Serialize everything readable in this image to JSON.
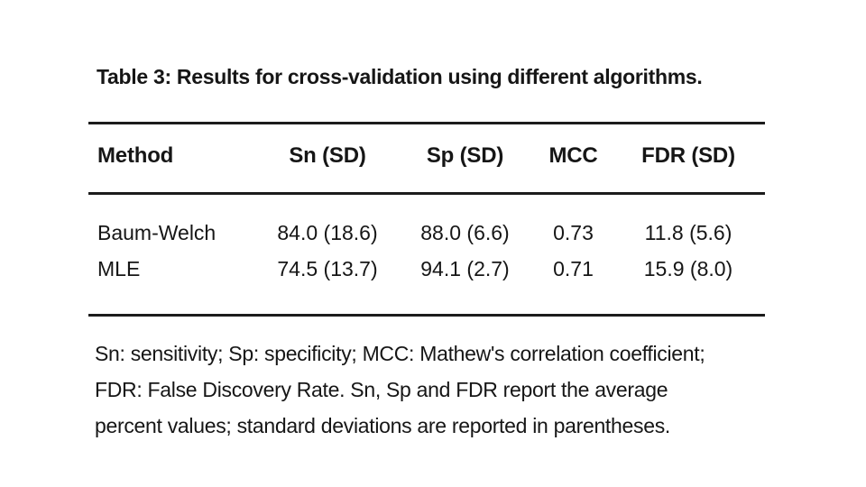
{
  "page": {
    "background": "#ffffff",
    "text_color": "#161616",
    "rule_color": "#1c1c1c"
  },
  "table": {
    "caption": "Table 3: Results for cross-validation using different algorithms.",
    "columns": [
      "Method",
      "Sn (SD)",
      "Sp (SD)",
      "MCC",
      "FDR (SD)"
    ],
    "rows": [
      {
        "method": "Baum-Welch",
        "sn": "84.0 (18.6)",
        "sp": "88.0 (6.6)",
        "mcc": "0.73",
        "fdr": "11.8 (5.6)"
      },
      {
        "method": "MLE",
        "sn": "74.5 (13.7)",
        "sp": "94.1 (2.7)",
        "mcc": "0.71",
        "fdr": "15.9 (8.0)"
      }
    ],
    "footnote_lines": [
      "Sn: sensitivity; Sp: specificity; MCC: Mathew's correlation coefficient;",
      "FDR: False Discovery Rate. Sn, Sp and FDR report the average",
      "percent values; standard deviations are reported in parentheses."
    ]
  }
}
